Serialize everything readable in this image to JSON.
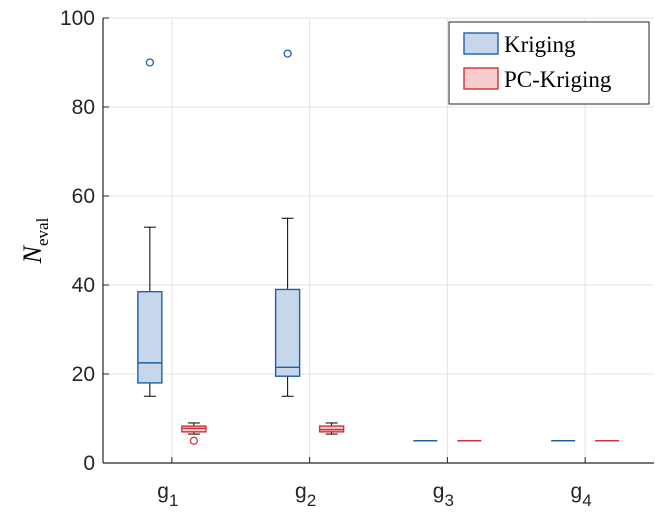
{
  "chart_data": {
    "type": "box",
    "title": "",
    "xlabel": "",
    "ylabel": "N",
    "ylabel_subscript": "eval",
    "ylim": [
      0,
      100
    ],
    "yticks": [
      0,
      20,
      40,
      60,
      80,
      100
    ],
    "categories": [
      {
        "base": "g",
        "sub": "1"
      },
      {
        "base": "g",
        "sub": "2"
      },
      {
        "base": "g",
        "sub": "3"
      },
      {
        "base": "g",
        "sub": "4"
      }
    ],
    "grid": true,
    "legend_position": "top-right",
    "series": [
      {
        "name": "Kriging",
        "edge_color": "#1f5fa8",
        "fill_color": "#c6d7ec",
        "boxes": [
          {
            "whisker_low": 15,
            "q1": 18,
            "median": 22.5,
            "q3": 38.5,
            "whisker_high": 53,
            "outliers": [
              90
            ]
          },
          {
            "whisker_low": 15,
            "q1": 19.5,
            "median": 21.5,
            "q3": 39,
            "whisker_high": 55,
            "outliers": [
              92
            ]
          },
          {
            "whisker_low": 5,
            "q1": 5,
            "median": 5,
            "q3": 5,
            "whisker_high": 5,
            "outliers": []
          },
          {
            "whisker_low": 5,
            "q1": 5,
            "median": 5,
            "q3": 5,
            "whisker_high": 5,
            "outliers": []
          }
        ]
      },
      {
        "name": "PC-Kriging",
        "edge_color": "#d0333a",
        "fill_color": "#f6cccd",
        "boxes": [
          {
            "whisker_low": 6.5,
            "q1": 7,
            "median": 7.8,
            "q3": 8.3,
            "whisker_high": 9,
            "outliers": [
              5
            ]
          },
          {
            "whisker_low": 6.5,
            "q1": 7,
            "median": 7.5,
            "q3": 8.3,
            "whisker_high": 9,
            "outliers": []
          },
          {
            "whisker_low": 5,
            "q1": 5,
            "median": 5,
            "q3": 5,
            "whisker_high": 5,
            "outliers": []
          },
          {
            "whisker_low": 5,
            "q1": 5,
            "median": 5,
            "q3": 5,
            "whisker_high": 5,
            "outliers": []
          }
        ]
      }
    ]
  }
}
